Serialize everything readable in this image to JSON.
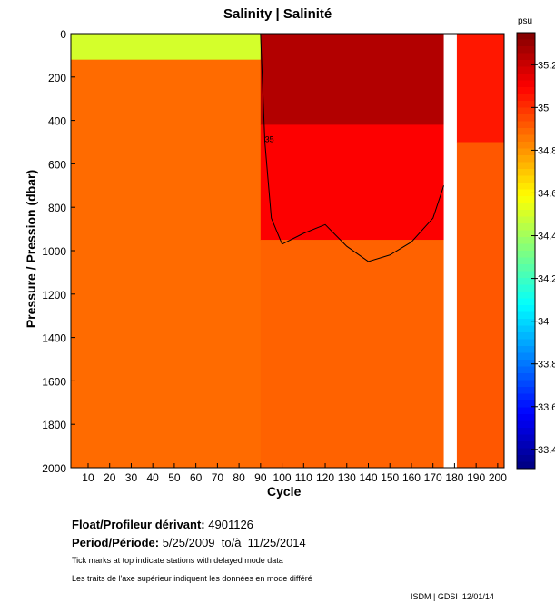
{
  "chart_data": {
    "type": "heatmap",
    "title": "Salinity | Salinité",
    "xlabel": "Cycle",
    "ylabel": "Pressure / Pression (dbar)",
    "xlim": [
      2,
      203
    ],
    "ylim": [
      2000,
      0
    ],
    "x_ticks": [
      "10",
      "20",
      "30",
      "40",
      "50",
      "60",
      "70",
      "80",
      "90",
      "100",
      "110",
      "120",
      "130",
      "140",
      "150",
      "160",
      "170",
      "180",
      "190",
      "200"
    ],
    "y_ticks": [
      "0",
      "200",
      "400",
      "600",
      "800",
      "1000",
      "1200",
      "1400",
      "1600",
      "1800",
      "2000"
    ],
    "colorbar": {
      "unit": "psu",
      "range": [
        33.31,
        35.35
      ],
      "ticks": [
        "35.2",
        "35",
        "34.8",
        "34.6",
        "34.4",
        "34.2",
        "34",
        "33.8",
        "33.6",
        "33.4"
      ]
    },
    "regions": [
      {
        "cycles": [
          2,
          90
        ],
        "pressure": [
          0,
          120
        ],
        "salinity": 34.5
      },
      {
        "cycles": [
          2,
          90
        ],
        "pressure": [
          120,
          2000
        ],
        "salinity": 34.88
      },
      {
        "cycles": [
          90,
          175
        ],
        "pressure": [
          0,
          420
        ],
        "salinity": 35.25
      },
      {
        "cycles": [
          90,
          175
        ],
        "pressure": [
          420,
          950
        ],
        "salinity": 35.1
      },
      {
        "cycles": [
          90,
          175
        ],
        "pressure": [
          950,
          2000
        ],
        "salinity": 34.9
      },
      {
        "cycles": [
          181,
          203
        ],
        "pressure": [
          0,
          500
        ],
        "salinity": 35.05
      },
      {
        "cycles": [
          181,
          203
        ],
        "pressure": [
          500,
          2000
        ],
        "salinity": 34.92
      }
    ],
    "contour_label": "35",
    "contour_35": {
      "cycles": [
        90,
        92,
        95,
        100,
        110,
        120,
        130,
        140,
        150,
        160,
        170,
        175
      ],
      "pressure": [
        0,
        500,
        850,
        970,
        920,
        880,
        980,
        1050,
        1020,
        960,
        850,
        700
      ]
    },
    "missing_cycles": [
      [
        175,
        181
      ]
    ]
  },
  "info": {
    "float_label": "Float/Profileur dérivant:",
    "float_id": "4901126",
    "period_label": "Period/Période:",
    "period_value": "5/25/2009  to/à  11/25/2014",
    "note_en": "Tick marks at top indicate stations with delayed mode data",
    "note_fr": "Les traits de l'axe supérieur indiquent les données en mode différé",
    "credit": "ISDM | GDSI  12/01/14"
  }
}
